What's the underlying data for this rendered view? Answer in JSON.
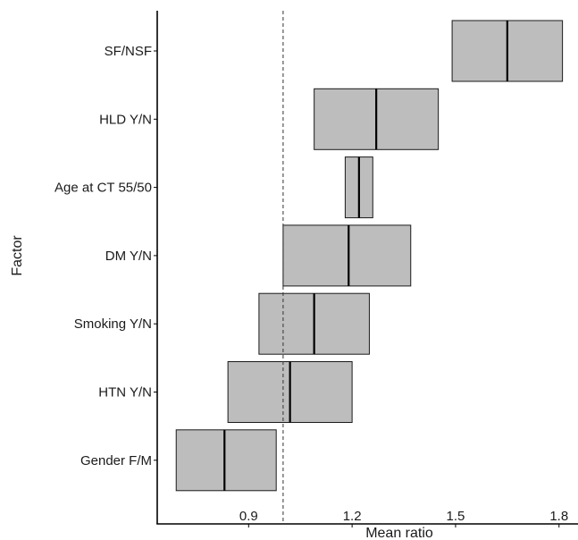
{
  "chart_data": {
    "type": "boxplot",
    "xlabel": "Mean ratio",
    "ylabel": "Factor",
    "xlim": [
      0.635,
      1.855
    ],
    "xticks": [
      0.9,
      1.2,
      1.5,
      1.8
    ],
    "xtick_labels": [
      "0.9",
      "1.2",
      "1.5",
      "1.8"
    ],
    "reference_line": 1.0,
    "grid": false,
    "categories": [
      "SF/NSF",
      "HLD Y/N",
      "Age at CT 55/50",
      "DM Y/N",
      "Smoking Y/N",
      "HTN Y/N",
      "Gender F/M"
    ],
    "series": [
      {
        "factor": "SF/NSF",
        "low": 1.49,
        "median": 1.65,
        "high": 1.81
      },
      {
        "factor": "HLD Y/N",
        "low": 1.09,
        "median": 1.27,
        "high": 1.45
      },
      {
        "factor": "Age at CT 55/50",
        "low": 1.18,
        "median": 1.22,
        "high": 1.26
      },
      {
        "factor": "DM Y/N",
        "low": 1.0,
        "median": 1.19,
        "high": 1.37
      },
      {
        "factor": "Smoking Y/N",
        "low": 0.93,
        "median": 1.09,
        "high": 1.25
      },
      {
        "factor": "HTN Y/N",
        "low": 0.84,
        "median": 1.02,
        "high": 1.2
      },
      {
        "factor": "Gender F/M",
        "low": 0.69,
        "median": 0.83,
        "high": 0.98
      }
    ],
    "colors": {
      "box_fill": "#bdbdbd",
      "box_stroke": "#1a1a1a",
      "median": "#000000"
    }
  }
}
